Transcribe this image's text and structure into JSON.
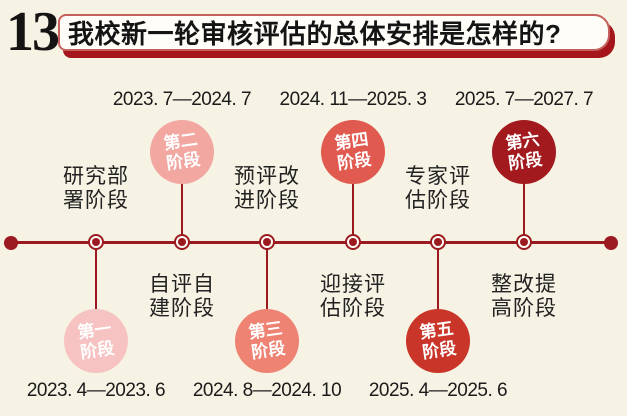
{
  "header": {
    "number": "13",
    "title": "我校新一轮审核评估的总体安排是怎样的?"
  },
  "timeline": {
    "stages": [
      {
        "name": "第一阶段",
        "circle_line1": "第一",
        "circle_line2": "阶段",
        "phase_line1": "研究部",
        "phase_line2": "署阶段",
        "date": "2023. 4—2023. 6",
        "circle_color": "#f6c3c2",
        "circle_position": "below"
      },
      {
        "name": "第二阶段",
        "circle_line1": "第二",
        "circle_line2": "阶段",
        "phase_line1": "自评自",
        "phase_line2": "建阶段",
        "date": "2023. 7—2024. 7",
        "circle_color": "#f2a7a1",
        "circle_position": "above"
      },
      {
        "name": "第三阶段",
        "circle_line1": "第三",
        "circle_line2": "阶段",
        "phase_line1": "预评改",
        "phase_line2": "进阶段",
        "date": "2024. 8—2024. 10",
        "circle_color": "#ee8374",
        "circle_position": "below"
      },
      {
        "name": "第四阶段",
        "circle_line1": "第四",
        "circle_line2": "阶段",
        "phase_line1": "迎接评",
        "phase_line2": "估阶段",
        "date": "2024. 11—2025. 3",
        "circle_color": "#e05a50",
        "circle_position": "above"
      },
      {
        "name": "第五阶段",
        "circle_line1": "第五",
        "circle_line2": "阶段",
        "phase_line1": "专家评",
        "phase_line2": "估阶段",
        "date": "2025. 4—2025. 6",
        "circle_color": "#c93529",
        "circle_position": "below"
      },
      {
        "name": "第六阶段",
        "circle_line1": "第六",
        "circle_line2": "阶段",
        "phase_line1": "整改提",
        "phase_line2": "高阶段",
        "date": "2025. 7—2027. 7",
        "circle_color": "#a31a1e",
        "circle_position": "above"
      }
    ]
  },
  "colors": {
    "page_background": "#f7f3e4",
    "timeline_line": "#9b1a20",
    "header_accent": "#a5161c",
    "title_box_border": "#c4615c",
    "title_box_background": "#fffdf8"
  }
}
